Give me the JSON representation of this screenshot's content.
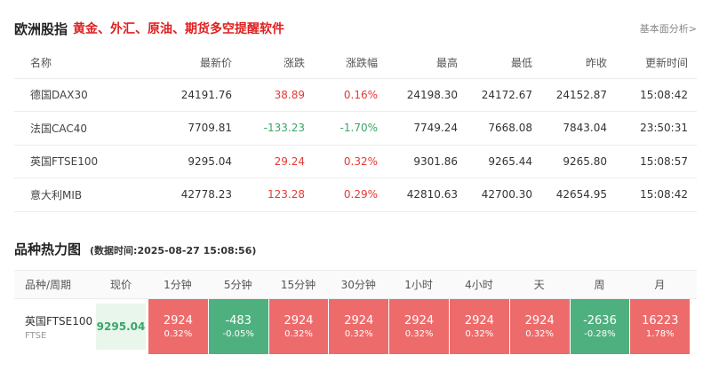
{
  "section1": {
    "title": "欧洲股指",
    "ad": "黄金、外汇、原油、期货多空提醒软件",
    "link": "基本面分析>"
  },
  "quotes": {
    "headers": [
      "名称",
      "最新价",
      "涨跌",
      "涨跌幅",
      "最高",
      "最低",
      "昨收",
      "更新时间"
    ],
    "rows": [
      {
        "name": "德国DAX30",
        "last": "24191.76",
        "change": "38.89",
        "pct": "0.16%",
        "high": "24198.30",
        "low": "24172.67",
        "prev": "24152.87",
        "time": "15:08:42",
        "dir": "up"
      },
      {
        "name": "法国CAC40",
        "last": "7709.81",
        "change": "-133.23",
        "pct": "-1.70%",
        "high": "7749.24",
        "low": "7668.08",
        "prev": "7843.04",
        "time": "23:50:31",
        "dir": "down"
      },
      {
        "name": "英国FTSE100",
        "last": "9295.04",
        "change": "29.24",
        "pct": "0.32%",
        "high": "9301.86",
        "low": "9265.44",
        "prev": "9265.80",
        "time": "15:08:57",
        "dir": "up"
      },
      {
        "name": "意大利MIB",
        "last": "42778.23",
        "change": "123.28",
        "pct": "0.29%",
        "high": "42810.63",
        "low": "42700.30",
        "prev": "42654.95",
        "time": "15:08:42",
        "dir": "up"
      }
    ]
  },
  "heatmap": {
    "title": "品种热力图",
    "time": "(数据时间:2025-08-27 15:08:56)",
    "headers": {
      "name": "品种/周期",
      "price": "现价",
      "periods": [
        "1分钟",
        "5分钟",
        "15分钟",
        "30分钟",
        "1小时",
        "4小时",
        "天",
        "周",
        "月"
      ]
    },
    "row": {
      "name": "英国FTSE100",
      "code": "FTSE",
      "price": "9295.04",
      "cells": [
        {
          "value": "2924",
          "pct": "0.32%",
          "dir": "up"
        },
        {
          "value": "-483",
          "pct": "-0.05%",
          "dir": "down"
        },
        {
          "value": "2924",
          "pct": "0.32%",
          "dir": "up"
        },
        {
          "value": "2924",
          "pct": "0.32%",
          "dir": "up"
        },
        {
          "value": "2924",
          "pct": "0.32%",
          "dir": "up"
        },
        {
          "value": "2924",
          "pct": "0.32%",
          "dir": "up"
        },
        {
          "value": "2924",
          "pct": "0.32%",
          "dir": "up"
        },
        {
          "value": "-2636",
          "pct": "-0.28%",
          "dir": "down"
        },
        {
          "value": "16223",
          "pct": "1.78%",
          "dir": "up"
        }
      ]
    }
  },
  "colors": {
    "up": "#e53935",
    "down": "#3aa56a",
    "heat_up": "#ee6b6b",
    "heat_down": "#4fb07f"
  }
}
